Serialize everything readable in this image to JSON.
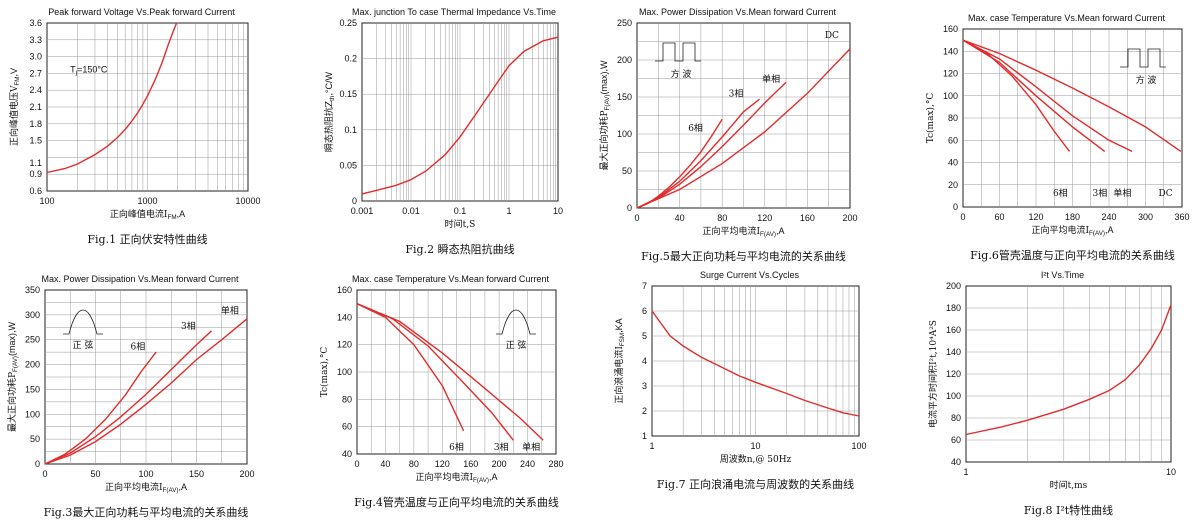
{
  "chart_data": [
    {
      "id": "fig1",
      "type": "line",
      "xscale": "log",
      "yscale": "linear",
      "title": "Peak forward Voltage Vs.Peak forward Current",
      "xlabel": "正向峰值电流I",
      "xlabel_sub": "FM",
      "xlabel_unit": ",A",
      "ylabel": "正向峰值电压V",
      "ylabel_sub": "FM",
      "ylabel_unit": ",V",
      "caption": "Fig.1 正向伏安特性曲线",
      "xlim": [
        100,
        10000
      ],
      "ylim": [
        0.6,
        3.6
      ],
      "xticks": [
        100,
        1000,
        10000
      ],
      "xtick_labels": [
        "100",
        "1000",
        "10000"
      ],
      "yticks": [
        0.6,
        0.9,
        1.1,
        1.5,
        1.8,
        2.1,
        2.4,
        2.7,
        3.0,
        3.3,
        3.6
      ],
      "ytick_labels": [
        "0.6",
        "0.9",
        "1.1",
        "1.5",
        "1.8",
        "2.1",
        "2.4",
        "2.7",
        "3.0",
        "3.3",
        "3.6"
      ],
      "annotations": [
        {
          "text": "T",
          "sub": "j",
          "rest": "=150°C",
          "x": 170,
          "y": 2.72
        }
      ],
      "series": [
        {
          "points": [
            [
              100,
              0.93
            ],
            [
              150,
              1.0
            ],
            [
              200,
              1.08
            ],
            [
              300,
              1.25
            ],
            [
              400,
              1.4
            ],
            [
              500,
              1.55
            ],
            [
              600,
              1.7
            ],
            [
              700,
              1.85
            ],
            [
              800,
              2.0
            ],
            [
              900,
              2.15
            ],
            [
              1000,
              2.3
            ],
            [
              1200,
              2.6
            ],
            [
              1400,
              2.9
            ],
            [
              1600,
              3.2
            ],
            [
              1800,
              3.45
            ],
            [
              1950,
              3.6
            ]
          ]
        }
      ]
    },
    {
      "id": "fig2",
      "type": "line",
      "xscale": "log",
      "yscale": "linear",
      "title": "Max. junction To case Thermal Impedance Vs.Time",
      "xlabel": "时间t,S",
      "ylabel": "瞬态热阻抗Z",
      "ylabel_sub": "th",
      "ylabel_unit": ",°C/W",
      "caption": "Fig.2 瞬态热阻抗曲线",
      "xlim": [
        0.001,
        10
      ],
      "ylim": [
        0,
        0.25
      ],
      "xticks": [
        0.001,
        0.01,
        0.1,
        1,
        10
      ],
      "xtick_labels": [
        "0.001",
        "0.01",
        "0.1",
        "1",
        "10"
      ],
      "yticks": [
        0,
        0.05,
        0.1,
        0.15,
        0.2,
        0.25
      ],
      "ytick_labels": [
        "0",
        "0.05",
        "0.1",
        "0.15",
        "0.2",
        "0.25"
      ],
      "series": [
        {
          "points": [
            [
              0.001,
              0.01
            ],
            [
              0.002,
              0.015
            ],
            [
              0.005,
              0.022
            ],
            [
              0.01,
              0.03
            ],
            [
              0.02,
              0.042
            ],
            [
              0.05,
              0.065
            ],
            [
              0.1,
              0.09
            ],
            [
              0.2,
              0.12
            ],
            [
              0.5,
              0.16
            ],
            [
              1,
              0.19
            ],
            [
              2,
              0.21
            ],
            [
              5,
              0.225
            ],
            [
              10,
              0.23
            ]
          ]
        }
      ]
    },
    {
      "id": "fig5",
      "type": "line",
      "title": "Max. Power Dissipation Vs.Mean forward Current",
      "xlabel": "正向平均电流I",
      "xlabel_sub": "F(AV)",
      "xlabel_unit": ",A",
      "ylabel": "最大正向功耗P",
      "ylabel_sub": "F(AV)",
      "ylabel_unit": "(max),W",
      "caption": "Fig.5最大正向功耗与平均电流的关系曲线",
      "xlim": [
        0,
        200
      ],
      "ylim": [
        0,
        250
      ],
      "xticks": [
        0,
        40,
        80,
        120,
        160,
        200
      ],
      "xtick_labels": [
        "0",
        "40",
        "80",
        "120",
        "160",
        "200"
      ],
      "yticks": [
        0,
        50,
        100,
        150,
        200,
        250
      ],
      "ytick_labels": [
        "0",
        "50",
        "100",
        "150",
        "200",
        "250"
      ],
      "inset": {
        "kind": "square",
        "label": "方 波"
      },
      "series": [
        {
          "name": "6相",
          "label_at": [
            55,
            104
          ],
          "points": [
            [
              0,
              0
            ],
            [
              10,
              6
            ],
            [
              20,
              16
            ],
            [
              30,
              28
            ],
            [
              40,
              42
            ],
            [
              50,
              58
            ],
            [
              60,
              76
            ],
            [
              70,
              97
            ],
            [
              80,
              120
            ]
          ]
        },
        {
          "name": "3相",
          "label_at": [
            93,
            151
          ],
          "points": [
            [
              0,
              0
            ],
            [
              20,
              14
            ],
            [
              40,
              36
            ],
            [
              60,
              64
            ],
            [
              80,
              96
            ],
            [
              100,
              130
            ],
            [
              115,
              147
            ]
          ]
        },
        {
          "name": "单相",
          "label_at": [
            126,
            170
          ],
          "points": [
            [
              0,
              0
            ],
            [
              20,
              13
            ],
            [
              40,
              32
            ],
            [
              60,
              56
            ],
            [
              80,
              83
            ],
            [
              100,
              112
            ],
            [
              120,
              142
            ],
            [
              140,
              170
            ]
          ]
        },
        {
          "name": "DC",
          "label_at": [
            183,
            230
          ],
          "points": [
            [
              0,
              0
            ],
            [
              40,
              25
            ],
            [
              80,
              60
            ],
            [
              120,
              103
            ],
            [
              160,
              155
            ],
            [
              200,
              215
            ]
          ]
        }
      ]
    },
    {
      "id": "fig6",
      "type": "line",
      "title": "Max. case Temperature Vs.Mean forward Current",
      "xlabel": "正向平均电流I",
      "xlabel_sub": "F(AV)",
      "xlabel_unit": ",A",
      "ylabel": "Tc(max),°C",
      "caption": "Fig.6管壳温度与正向平均电流的关系曲线",
      "xlim": [
        0,
        360
      ],
      "ylim": [
        0,
        160
      ],
      "xticks": [
        0,
        60,
        120,
        180,
        240,
        300,
        360
      ],
      "xtick_labels": [
        "0",
        "60",
        "120",
        "180",
        "240",
        "300",
        "360"
      ],
      "yticks": [
        0,
        20,
        40,
        60,
        80,
        100,
        120,
        140,
        160
      ],
      "ytick_labels": [
        "0",
        "20",
        "40",
        "60",
        "80",
        "100",
        "120",
        "140",
        "160"
      ],
      "inset": {
        "kind": "square",
        "label": "方 波"
      },
      "series": [
        {
          "name": "6相",
          "label_at": [
            160,
            10
          ],
          "points": [
            [
              0,
              150
            ],
            [
              40,
              138
            ],
            [
              80,
              118
            ],
            [
              120,
              92
            ],
            [
              150,
              68
            ],
            [
              175,
              50
            ]
          ]
        },
        {
          "name": "3相",
          "label_at": [
            225,
            10
          ],
          "points": [
            [
              0,
              150
            ],
            [
              60,
              130
            ],
            [
              120,
              100
            ],
            [
              180,
              72
            ],
            [
              233,
              50
            ]
          ]
        },
        {
          "name": "单相",
          "label_at": [
            262,
            10
          ],
          "points": [
            [
              0,
              150
            ],
            [
              60,
              133
            ],
            [
              120,
              108
            ],
            [
              180,
              82
            ],
            [
              240,
              60
            ],
            [
              278,
              50
            ]
          ]
        },
        {
          "name": "DC",
          "label_at": [
            333,
            10
          ],
          "points": [
            [
              0,
              150
            ],
            [
              60,
              138
            ],
            [
              120,
              123
            ],
            [
              180,
              107
            ],
            [
              240,
              90
            ],
            [
              300,
              72
            ],
            [
              358,
              50
            ]
          ]
        }
      ]
    },
    {
      "id": "fig3",
      "type": "line",
      "title": "Max. Power Dissipation Vs.Mean forward Current",
      "xlabel": "正向平均电流I",
      "xlabel_sub": "F(AV)",
      "xlabel_unit": ",A",
      "ylabel": "最大正向功耗P",
      "ylabel_sub": "F(AV)",
      "ylabel_unit": "(max),W",
      "caption": "Fig.3最大正向功耗与平均电流的关系曲线",
      "xlim": [
        0,
        200
      ],
      "ylim": [
        0,
        350
      ],
      "xticks": [
        0,
        50,
        100,
        150,
        200
      ],
      "xtick_labels": [
        "0",
        "50",
        "100",
        "150",
        "200"
      ],
      "yticks": [
        0,
        50,
        100,
        150,
        200,
        250,
        300,
        350
      ],
      "ytick_labels": [
        "0",
        "50",
        "100",
        "150",
        "200",
        "250",
        "300",
        "350"
      ],
      "inset": {
        "kind": "sine",
        "label": "正 弦"
      },
      "series": [
        {
          "name": "6相",
          "label_at": [
            92,
            230
          ],
          "points": [
            [
              0,
              0
            ],
            [
              20,
              20
            ],
            [
              40,
              50
            ],
            [
              60,
              90
            ],
            [
              80,
              140
            ],
            [
              95,
              185
            ],
            [
              110,
              225
            ]
          ]
        },
        {
          "name": "3相",
          "label_at": [
            142,
            272
          ],
          "points": [
            [
              0,
              0
            ],
            [
              25,
              22
            ],
            [
              50,
              55
            ],
            [
              75,
              95
            ],
            [
              100,
              140
            ],
            [
              125,
              190
            ],
            [
              150,
              240
            ],
            [
              165,
              268
            ]
          ]
        },
        {
          "name": "单相",
          "label_at": [
            183,
            303
          ],
          "points": [
            [
              0,
              0
            ],
            [
              25,
              18
            ],
            [
              50,
              45
            ],
            [
              75,
              80
            ],
            [
              100,
              120
            ],
            [
              125,
              163
            ],
            [
              150,
              210
            ],
            [
              175,
              250
            ],
            [
              200,
              292
            ]
          ]
        }
      ]
    },
    {
      "id": "fig4",
      "type": "line",
      "title": "Max. case Temperature Vs.Mean forward Current",
      "xlabel": "正向平均电流I",
      "xlabel_sub": "F(AV)",
      "xlabel_unit": ",A",
      "ylabel": "Tc(max),°C",
      "caption": "Fig.4管壳温度与正向平均电流的关系曲线",
      "xlim": [
        0,
        280
      ],
      "ylim": [
        40,
        160
      ],
      "xticks": [
        0,
        40,
        80,
        120,
        160,
        200,
        240,
        280
      ],
      "xtick_labels": [
        "0",
        "40",
        "80",
        "120",
        "160",
        "200",
        "240",
        "280"
      ],
      "yticks": [
        40,
        60,
        80,
        100,
        120,
        140,
        160
      ],
      "ytick_labels": [
        "40",
        "60",
        "80",
        "100",
        "120",
        "140",
        "160"
      ],
      "inset": {
        "kind": "sine",
        "label": "正 弦"
      },
      "series": [
        {
          "name": "6相",
          "label_at": [
            140,
            43
          ],
          "points": [
            [
              0,
              150
            ],
            [
              40,
              140
            ],
            [
              80,
              120
            ],
            [
              120,
              90
            ],
            [
              150,
              57
            ]
          ]
        },
        {
          "name": "3相",
          "label_at": [
            203,
            43
          ],
          "points": [
            [
              0,
              150
            ],
            [
              50,
              139
            ],
            [
              100,
              119
            ],
            [
              150,
              92
            ],
            [
              190,
              70
            ],
            [
              220,
              50
            ]
          ]
        },
        {
          "name": "单相",
          "label_at": [
            245,
            43
          ],
          "points": [
            [
              0,
              150
            ],
            [
              60,
              137
            ],
            [
              120,
              114
            ],
            [
              180,
              88
            ],
            [
              230,
              66
            ],
            [
              262,
              50
            ]
          ]
        }
      ]
    },
    {
      "id": "fig7",
      "type": "line",
      "xscale": "log",
      "yscale": "linear",
      "title": "Surge Current Vs.Cycles",
      "xlabel": "周波数n,@ 50Hz",
      "ylabel": "正向浪涌电流I",
      "ylabel_sub": "FSM",
      "ylabel_unit": ",KA",
      "caption": "Fig.7 正向浪涌电流与周波数的关系曲线",
      "xlim": [
        1,
        100
      ],
      "ylim": [
        1,
        7
      ],
      "xticks": [
        1,
        10,
        100
      ],
      "xtick_labels": [
        "1",
        "10",
        "100"
      ],
      "yticks": [
        1,
        2,
        3,
        4,
        5,
        6,
        7
      ],
      "ytick_labels": [
        "1",
        "2",
        "3",
        "4",
        "5",
        "6",
        "7"
      ],
      "series": [
        {
          "points": [
            [
              1,
              6.0
            ],
            [
              1.5,
              5.0
            ],
            [
              2,
              4.6
            ],
            [
              3,
              4.15
            ],
            [
              5,
              3.7
            ],
            [
              7,
              3.4
            ],
            [
              10,
              3.15
            ],
            [
              20,
              2.7
            ],
            [
              30,
              2.42
            ],
            [
              50,
              2.12
            ],
            [
              70,
              1.93
            ],
            [
              100,
              1.8
            ]
          ]
        }
      ]
    },
    {
      "id": "fig8",
      "type": "line",
      "xscale": "log",
      "yscale": "linear",
      "title": "I²t Vs.Time",
      "xlabel": "时间t,ms",
      "ylabel": "电流平方时间积I²t,10⁴A²S",
      "caption": "Fig.8 I²t特性曲线",
      "xlim": [
        1,
        10
      ],
      "ylim": [
        40,
        200
      ],
      "xticks": [
        1,
        10
      ],
      "xtick_labels": [
        "1",
        "10"
      ],
      "yticks": [
        40,
        60,
        80,
        100,
        120,
        140,
        160,
        180,
        200
      ],
      "ytick_labels": [
        "40",
        "60",
        "80",
        "100",
        "120",
        "140",
        "160",
        "180",
        "200"
      ],
      "series": [
        {
          "points": [
            [
              1,
              65
            ],
            [
              1.5,
              72
            ],
            [
              2,
              78
            ],
            [
              3,
              88
            ],
            [
              4,
              97
            ],
            [
              5,
              105
            ],
            [
              6,
              115
            ],
            [
              7,
              128
            ],
            [
              8,
              143
            ],
            [
              9,
              160
            ],
            [
              10,
              183
            ]
          ]
        }
      ]
    }
  ]
}
